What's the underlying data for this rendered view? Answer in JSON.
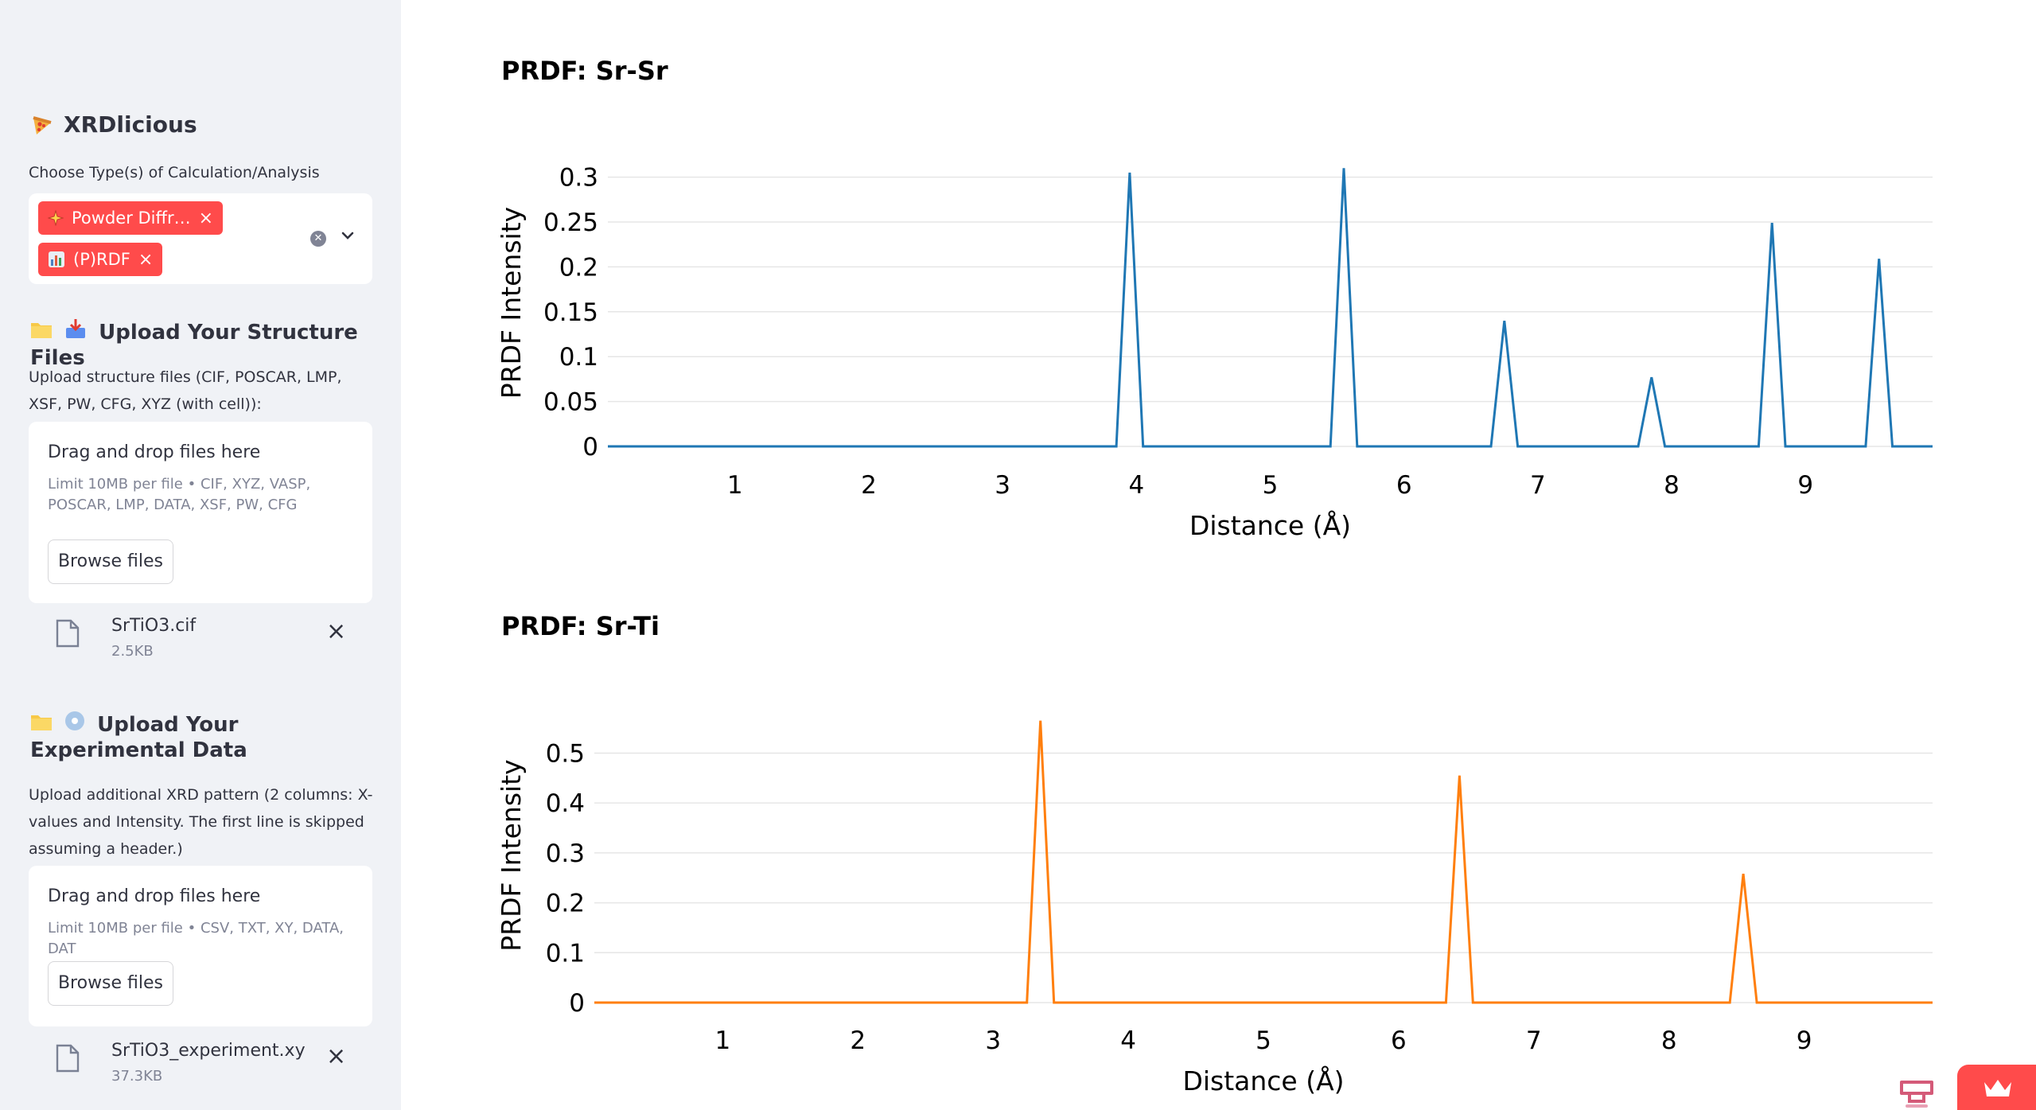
{
  "sidebar": {
    "app_title": "XRDlicious",
    "app_icon": "pizza-icon",
    "calc_label": "Choose Type(s) of Calculation/Analysis",
    "chips": [
      {
        "icon": "sparkle-icon",
        "label": "Powder Diffr…"
      },
      {
        "icon": "bar-chart-icon",
        "label": "(P)RDF"
      }
    ],
    "structure_section": {
      "title": "Upload Your Structure Files",
      "icons": [
        "folder-icon",
        "inbox-tray-icon"
      ],
      "description": "Upload structure files (CIF, POSCAR, LMP, XSF, PW, CFG, XYZ (with cell)):",
      "drop_title": "Drag and drop files here",
      "limit_text": "Limit 10MB per file • CIF, XYZ, VASP, POSCAR, LMP, DATA, XSF, PW, CFG",
      "browse_label": "Browse files",
      "file": {
        "name": "SrTiO3.cif",
        "size": "2.5KB"
      }
    },
    "experimental_section": {
      "title": "Upload Your Experimental Data",
      "icons": [
        "folder-icon",
        "disc-icon"
      ],
      "description": "Upload additional XRD pattern (2 columns: X-values and Intensity. The first line is skipped assuming a header.)",
      "drop_title": "Drag and drop files here",
      "limit_text": "Limit 10MB per file • CSV, TXT, XY, DATA, DAT",
      "browse_label": "Browse files",
      "file": {
        "name": "SrTiO3_experiment.xy",
        "size": "37.3KB"
      }
    }
  },
  "colors": {
    "accent": "#ff4b4b",
    "sidebar_bg": "#f0f2f6",
    "series_srsr": "#1f77b4",
    "series_srti": "#ff7f0e"
  },
  "chart_data": [
    {
      "type": "line",
      "title": "PRDF: Sr-Sr",
      "xlabel": "Distance (Å)",
      "ylabel": "PRDF Intensity",
      "xlim": [
        0.05,
        9.95
      ],
      "ylim": [
        0,
        0.32
      ],
      "x_ticks": [
        1,
        2,
        3,
        4,
        5,
        6,
        7,
        8,
        9
      ],
      "y_ticks": [
        0,
        0.05,
        0.1,
        0.15,
        0.2,
        0.25,
        0.3
      ],
      "y_tick_labels": [
        "0",
        "0.05",
        "0.1",
        "0.15",
        "0.2",
        "0.25",
        "0.3"
      ],
      "grid": true,
      "series": [
        {
          "color": "#1f77b4",
          "x": [
            0.05,
            3.85,
            3.95,
            4.05,
            5.45,
            5.55,
            5.65,
            6.65,
            6.75,
            6.85,
            7.75,
            7.85,
            7.95,
            8.65,
            8.75,
            8.85,
            9.45,
            9.55,
            9.65,
            9.95
          ],
          "y": [
            0,
            0,
            0.305,
            0,
            0,
            0.31,
            0,
            0,
            0.14,
            0,
            0,
            0.077,
            0,
            0,
            0.249,
            0,
            0,
            0.209,
            0,
            0
          ]
        }
      ]
    },
    {
      "type": "line",
      "title": "PRDF: Sr-Ti",
      "xlabel": "Distance (Å)",
      "ylabel": "PRDF Intensity",
      "xlim": [
        0.05,
        9.95
      ],
      "ylim": [
        0,
        0.59
      ],
      "x_ticks": [
        1,
        2,
        3,
        4,
        5,
        6,
        7,
        8,
        9
      ],
      "y_ticks": [
        0,
        0.1,
        0.2,
        0.3,
        0.4,
        0.5
      ],
      "y_tick_labels": [
        "0",
        "0.1",
        "0.2",
        "0.3",
        "0.4",
        "0.5"
      ],
      "grid": true,
      "series": [
        {
          "color": "#ff7f0e",
          "x": [
            0.05,
            3.25,
            3.35,
            3.45,
            6.35,
            6.45,
            6.55,
            8.45,
            8.55,
            8.65,
            9.95
          ],
          "y": [
            0,
            0,
            0.565,
            0,
            0,
            0.455,
            0,
            0,
            0.258,
            0,
            0
          ]
        }
      ]
    }
  ]
}
